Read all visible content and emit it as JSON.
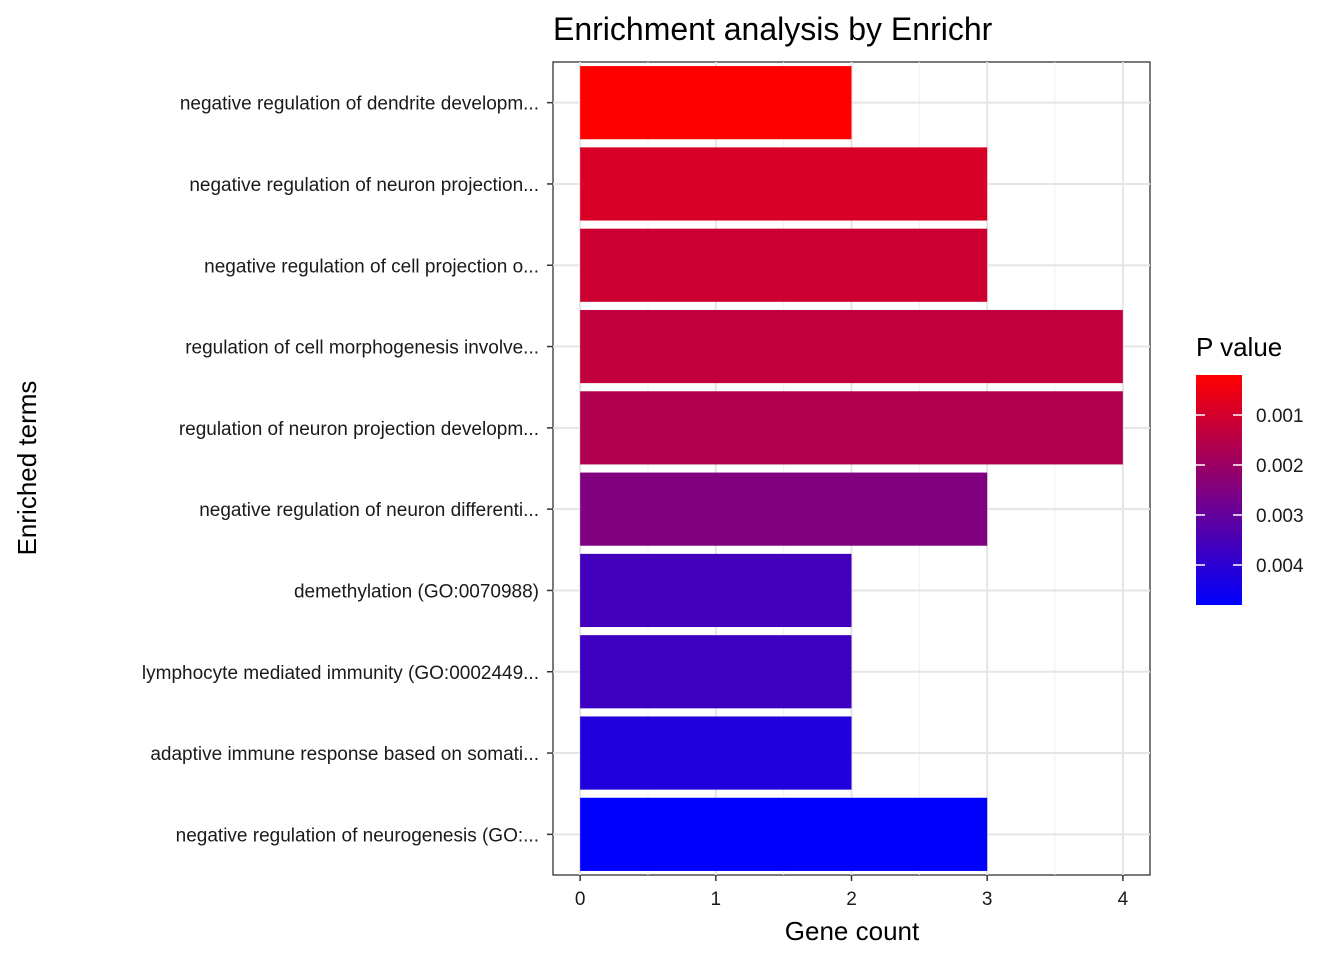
{
  "chart_data": {
    "type": "bar",
    "orientation": "horizontal",
    "title": "Enrichment analysis by Enrichr",
    "xlabel": "Gene count",
    "ylabel": "Enriched terms",
    "xlim": [
      0,
      4.2
    ],
    "x_ticks": [
      "0",
      "1",
      "2",
      "3",
      "4"
    ],
    "grid": true,
    "categories": [
      "negative regulation of dendrite developm...",
      "negative regulation of neuron projection...",
      "negative regulation of cell projection o...",
      "regulation of cell morphogenesis involve...",
      "regulation of neuron projection developm...",
      "negative regulation of neuron differenti...",
      "demethylation (GO:0070988)",
      "lymphocyte mediated immunity (GO:0002449...",
      "adaptive immune response based on somati...",
      "negative regulation of neurogenesis (GO:..."
    ],
    "values": [
      2,
      3,
      3,
      4,
      4,
      3,
      2,
      2,
      2,
      3
    ],
    "p_values": [
      0.0002,
      0.0009,
      0.0011,
      0.0013,
      0.0016,
      0.0025,
      0.0036,
      0.0037,
      0.0042,
      0.0048
    ],
    "legend": {
      "title": "P value",
      "position": "right",
      "ticks": [
        "0.001",
        "0.002",
        "0.003",
        "0.004"
      ],
      "tick_values": [
        0.001,
        0.002,
        0.003,
        0.004
      ],
      "range": [
        0.0002,
        0.0048
      ],
      "low_color": "#FF0000",
      "high_color": "#0000FF"
    }
  }
}
